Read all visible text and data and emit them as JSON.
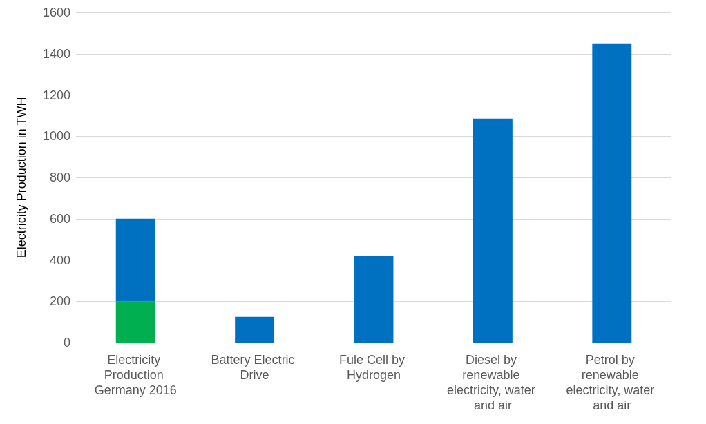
{
  "chart_data": {
    "type": "bar",
    "stacked": true,
    "ylabel": "Electricity Production in TWH",
    "categories": [
      "Electricity Production Germany 2016",
      "Battery Electric Drive",
      "Fule Cell by Hydrogen",
      "Diesel by renewable electricity, water and air",
      "Petrol by renewable electricity, water and air"
    ],
    "series": [
      {
        "color": "#00b050",
        "values": [
          200,
          null,
          null,
          null,
          null
        ]
      },
      {
        "color": "#0070c0",
        "values": [
          400,
          125,
          420,
          1085,
          1450
        ]
      }
    ],
    "ylim": [
      0,
      1600
    ],
    "yticks": [
      0,
      200,
      400,
      600,
      800,
      1000,
      1200,
      1400,
      1600
    ],
    "grid": "y"
  }
}
